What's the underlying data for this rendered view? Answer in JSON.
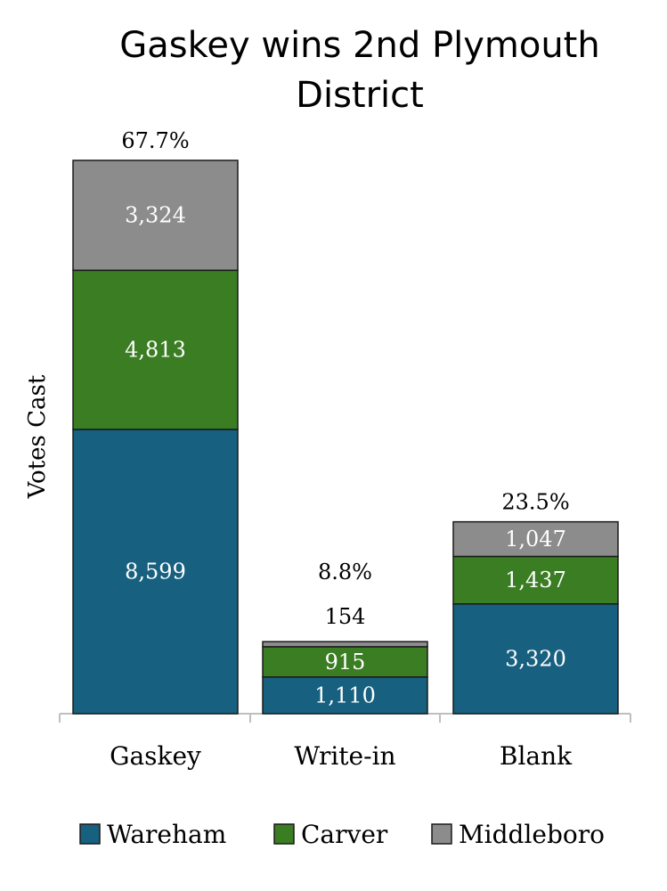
{
  "chart_data": {
    "type": "bar",
    "stacked": true,
    "title_lines": [
      "Gaskey wins 2nd Plymouth",
      "District"
    ],
    "ylabel": "Votes Cast",
    "categories": [
      "Gaskey",
      "Write-in",
      "Blank"
    ],
    "series": [
      {
        "name": "Wareham",
        "color": "#17607f",
        "values": [
          8599,
          1110,
          3320
        ],
        "labels": [
          "8,599",
          "1,110",
          "3,320"
        ]
      },
      {
        "name": "Carver",
        "color": "#3a7d22",
        "values": [
          4813,
          915,
          1437
        ],
        "labels": [
          "4,813",
          "915",
          "1,437"
        ]
      },
      {
        "name": "Middleboro",
        "color": "#8c8c8c",
        "values": [
          3324,
          154,
          1047
        ],
        "labels": [
          "3,324",
          "154",
          "1,047"
        ]
      }
    ],
    "totals_percent": [
      "67.7%",
      "8.8%",
      "23.5%"
    ],
    "ylim": [
      0,
      16736
    ],
    "grid": false,
    "legend_position": "bottom"
  }
}
